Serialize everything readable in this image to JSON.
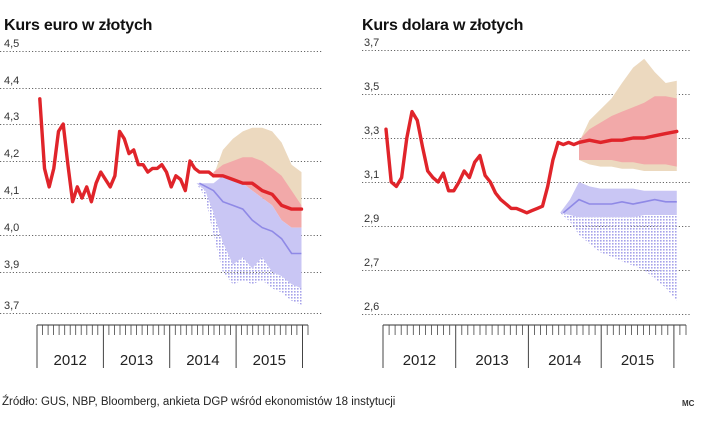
{
  "chart_data": [
    {
      "type": "line",
      "title": "Kurs euro w złotych",
      "xlabel": "",
      "ylabel": "",
      "ylim": [
        3.7,
        4.5
      ],
      "yticks": [
        "4,5",
        "4,4",
        "4,3",
        "4,2",
        "4,1",
        "4,0",
        "3,9",
        "3,7"
      ],
      "year_labels": [
        "2012",
        "2013",
        "2014",
        "2015"
      ],
      "x_range": [
        2011.3,
        2016.0
      ],
      "grid": true,
      "colors": {
        "actual": "#e0242a",
        "forecast_mid": "#e0242a",
        "band_high_outer": "#ecd9bf",
        "band_high_inner": "#f2a9a9",
        "band_low": "#c9c6f4",
        "band_low_line": "#8f89e6",
        "band_low_dots": "#a6a2ea"
      },
      "series": [
        {
          "x": [
            2011.38,
            2011.46,
            2011.54,
            2011.62,
            2011.7,
            2011.78,
            2011.86,
            2011.94,
            2012.02,
            2012.1,
            2012.18,
            2012.26,
            2012.34,
            2012.42,
            2012.5,
            2012.58,
            2012.66,
            2012.74,
            2012.82,
            2012.9,
            2012.98,
            2013.06,
            2013.14,
            2013.22,
            2013.3,
            2013.38,
            2013.46,
            2013.54,
            2013.62,
            2013.7,
            2013.78,
            2013.86,
            2013.94,
            2014.02,
            2014.1,
            2014.18,
            2014.26,
            2014.34
          ],
          "values": [
            4.37,
            4.18,
            4.13,
            4.18,
            4.28,
            4.3,
            4.19,
            4.09,
            4.13,
            4.1,
            4.13,
            4.09,
            4.14,
            4.17,
            4.15,
            4.13,
            4.16,
            4.28,
            4.26,
            4.22,
            4.23,
            4.19,
            4.19,
            4.17,
            4.18,
            4.18,
            4.19,
            4.17,
            4.13,
            4.16,
            4.15,
            4.12,
            4.2,
            4.18,
            4.17,
            4.17,
            4.17,
            4.16
          ]
        },
        {
          "x": [
            2014.34,
            2014.5,
            2014.67,
            2014.84,
            2015.0,
            2015.17,
            2015.34,
            2015.5,
            2015.67,
            2015.84
          ],
          "values": [
            4.16,
            4.16,
            4.15,
            4.14,
            4.14,
            4.12,
            4.11,
            4.08,
            4.07,
            4.07
          ]
        }
      ],
      "bands": [
        {
          "x": [
            2014.34,
            2014.5,
            2014.67,
            2014.84,
            2015.0,
            2015.17,
            2015.34,
            2015.5,
            2015.67,
            2015.84
          ],
          "upper": [
            4.16,
            4.23,
            4.26,
            4.28,
            4.29,
            4.29,
            4.28,
            4.25,
            4.19,
            4.17
          ],
          "lower": [
            4.16,
            4.18,
            4.18,
            4.19,
            4.19,
            4.18,
            4.17,
            4.14,
            4.1,
            4.07
          ]
        },
        {
          "x": [
            2014.34,
            2014.5,
            2014.67,
            2014.84,
            2015.0,
            2015.17,
            2015.34,
            2015.5,
            2015.67,
            2015.84
          ],
          "upper": [
            4.17,
            4.19,
            4.2,
            4.21,
            4.21,
            4.2,
            4.18,
            4.16,
            4.12,
            4.08
          ],
          "lower": [
            4.16,
            4.16,
            4.15,
            4.14,
            4.12,
            4.1,
            4.08,
            4.04,
            4.02,
            4.02
          ]
        },
        {
          "x": [
            2014.05,
            2014.2,
            2014.34,
            2014.5,
            2014.67,
            2014.84,
            2015.0,
            2015.17,
            2015.34,
            2015.5,
            2015.67,
            2015.84
          ],
          "upper": [
            4.14,
            4.14,
            4.14,
            4.16,
            4.15,
            4.14,
            4.12,
            4.1,
            4.08,
            4.04,
            4.02,
            4.02
          ],
          "lower": [
            4.14,
            4.12,
            4.06,
            3.98,
            3.92,
            3.94,
            3.91,
            3.94,
            3.9,
            3.88,
            3.84,
            3.82
          ]
        },
        {
          "x": [
            2014.05,
            2014.2,
            2014.34,
            2014.5,
            2014.67,
            2014.84,
            2015.0,
            2015.17,
            2015.34,
            2015.5,
            2015.67,
            2015.84
          ],
          "upper": [
            4.14,
            4.12,
            4.06,
            3.98,
            3.92,
            3.94,
            3.91,
            3.94,
            3.9,
            3.88,
            3.84,
            3.82
          ],
          "lower": [
            4.14,
            4.1,
            4.0,
            3.9,
            3.84,
            3.86,
            3.84,
            3.86,
            3.82,
            3.8,
            3.76,
            3.74
          ]
        }
      ],
      "low_line": {
        "x": [
          2014.1,
          2014.34,
          2014.5,
          2014.67,
          2014.84,
          2015.0,
          2015.17,
          2015.34,
          2015.5,
          2015.67,
          2015.84
        ],
        "values": [
          4.14,
          4.12,
          4.09,
          4.08,
          4.07,
          4.04,
          4.02,
          4.01,
          3.99,
          3.95,
          3.95
        ]
      }
    },
    {
      "type": "line",
      "title": "Kurs dolara w złotych",
      "xlabel": "",
      "ylabel": "",
      "ylim": [
        2.6,
        3.7
      ],
      "yticks": [
        "3,7",
        "3,5",
        "3,3",
        "3,1",
        "2,9",
        "2,7",
        "2,6"
      ],
      "year_labels": [
        "2012",
        "2013",
        "2014",
        "2015"
      ],
      "x_range": [
        2011.3,
        2016.0
      ],
      "grid": true,
      "colors": {
        "actual": "#e0242a",
        "forecast_mid": "#e0242a",
        "band_high_outer": "#ecd9bf",
        "band_high_inner": "#f2a9a9",
        "band_low": "#c9c6f4",
        "band_low_line": "#8f89e6",
        "band_low_dots": "#a6a2ea"
      },
      "series": [
        {
          "x": [
            2011.38,
            2011.46,
            2011.54,
            2011.62,
            2011.7,
            2011.78,
            2011.86,
            2011.94,
            2012.02,
            2012.1,
            2012.18,
            2012.26,
            2012.34,
            2012.42,
            2012.5,
            2012.58,
            2012.66,
            2012.74,
            2012.82,
            2012.9,
            2012.98,
            2013.06,
            2013.14,
            2013.22,
            2013.3,
            2013.38,
            2013.46,
            2013.54,
            2013.62,
            2013.7,
            2013.78,
            2013.86,
            2013.94,
            2014.02,
            2014.1,
            2014.18,
            2014.26,
            2014.34
          ],
          "values": [
            3.34,
            3.1,
            3.08,
            3.12,
            3.3,
            3.42,
            3.38,
            3.26,
            3.15,
            3.12,
            3.1,
            3.14,
            3.06,
            3.06,
            3.1,
            3.15,
            3.12,
            3.19,
            3.22,
            3.13,
            3.1,
            3.05,
            3.02,
            3.0,
            2.98,
            2.98,
            2.97,
            2.96,
            2.97,
            2.98,
            2.99,
            3.08,
            3.2,
            3.28,
            3.27,
            3.28,
            3.27,
            3.28
          ]
        },
        {
          "x": [
            2014.34,
            2014.5,
            2014.67,
            2014.84,
            2015.0,
            2015.17,
            2015.34,
            2015.5,
            2015.67,
            2015.84
          ],
          "values": [
            3.28,
            3.29,
            3.28,
            3.29,
            3.29,
            3.3,
            3.3,
            3.31,
            3.32,
            3.33
          ]
        }
      ],
      "bands": [
        {
          "x": [
            2014.34,
            2014.5,
            2014.67,
            2014.84,
            2015.0,
            2015.17,
            2015.34,
            2015.5,
            2015.67,
            2015.84
          ],
          "upper": [
            3.28,
            3.38,
            3.43,
            3.48,
            3.55,
            3.62,
            3.66,
            3.6,
            3.55,
            3.56
          ],
          "lower": [
            3.2,
            3.18,
            3.17,
            3.17,
            3.16,
            3.16,
            3.15,
            3.15,
            3.15,
            3.15
          ]
        },
        {
          "x": [
            2014.34,
            2014.5,
            2014.67,
            2014.84,
            2015.0,
            2015.17,
            2015.34,
            2015.5,
            2015.67,
            2015.84
          ],
          "upper": [
            3.29,
            3.34,
            3.37,
            3.4,
            3.42,
            3.44,
            3.46,
            3.49,
            3.49,
            3.48
          ],
          "lower": [
            3.2,
            3.2,
            3.2,
            3.2,
            3.19,
            3.19,
            3.18,
            3.18,
            3.18,
            3.17
          ]
        },
        {
          "x": [
            2014.05,
            2014.2,
            2014.34,
            2014.5,
            2014.67,
            2014.84,
            2015.0,
            2015.17,
            2015.34,
            2015.5,
            2015.67,
            2015.84
          ],
          "upper": [
            2.96,
            3.02,
            3.1,
            3.08,
            3.07,
            3.07,
            3.07,
            3.07,
            3.06,
            3.06,
            3.06,
            3.06
          ],
          "lower": [
            2.96,
            2.95,
            2.94,
            2.94,
            2.94,
            2.94,
            2.94,
            2.94,
            2.95,
            2.95,
            2.95,
            2.95
          ]
        },
        {
          "x": [
            2014.05,
            2014.2,
            2014.34,
            2014.5,
            2014.67,
            2014.84,
            2015.0,
            2015.17,
            2015.34,
            2015.5,
            2015.67,
            2015.84
          ],
          "upper": [
            2.96,
            2.95,
            2.94,
            2.94,
            2.94,
            2.94,
            2.94,
            2.94,
            2.95,
            2.95,
            2.95,
            2.95
          ],
          "lower": [
            2.96,
            2.92,
            2.86,
            2.82,
            2.78,
            2.76,
            2.74,
            2.72,
            2.7,
            2.68,
            2.66,
            2.63
          ]
        }
      ],
      "low_line": {
        "x": [
          2014.1,
          2014.34,
          2014.5,
          2014.67,
          2014.84,
          2015.0,
          2015.17,
          2015.34,
          2015.5,
          2015.67,
          2015.84
        ],
        "values": [
          2.96,
          3.02,
          3.0,
          3.0,
          3.0,
          3.01,
          3.0,
          3.01,
          3.02,
          3.01,
          3.01
        ]
      }
    }
  ],
  "source": "Źródło: GUS, NBP, Bloomberg, ankieta DGP wśród ekonomistów 18 instytucji",
  "credit": "MC"
}
